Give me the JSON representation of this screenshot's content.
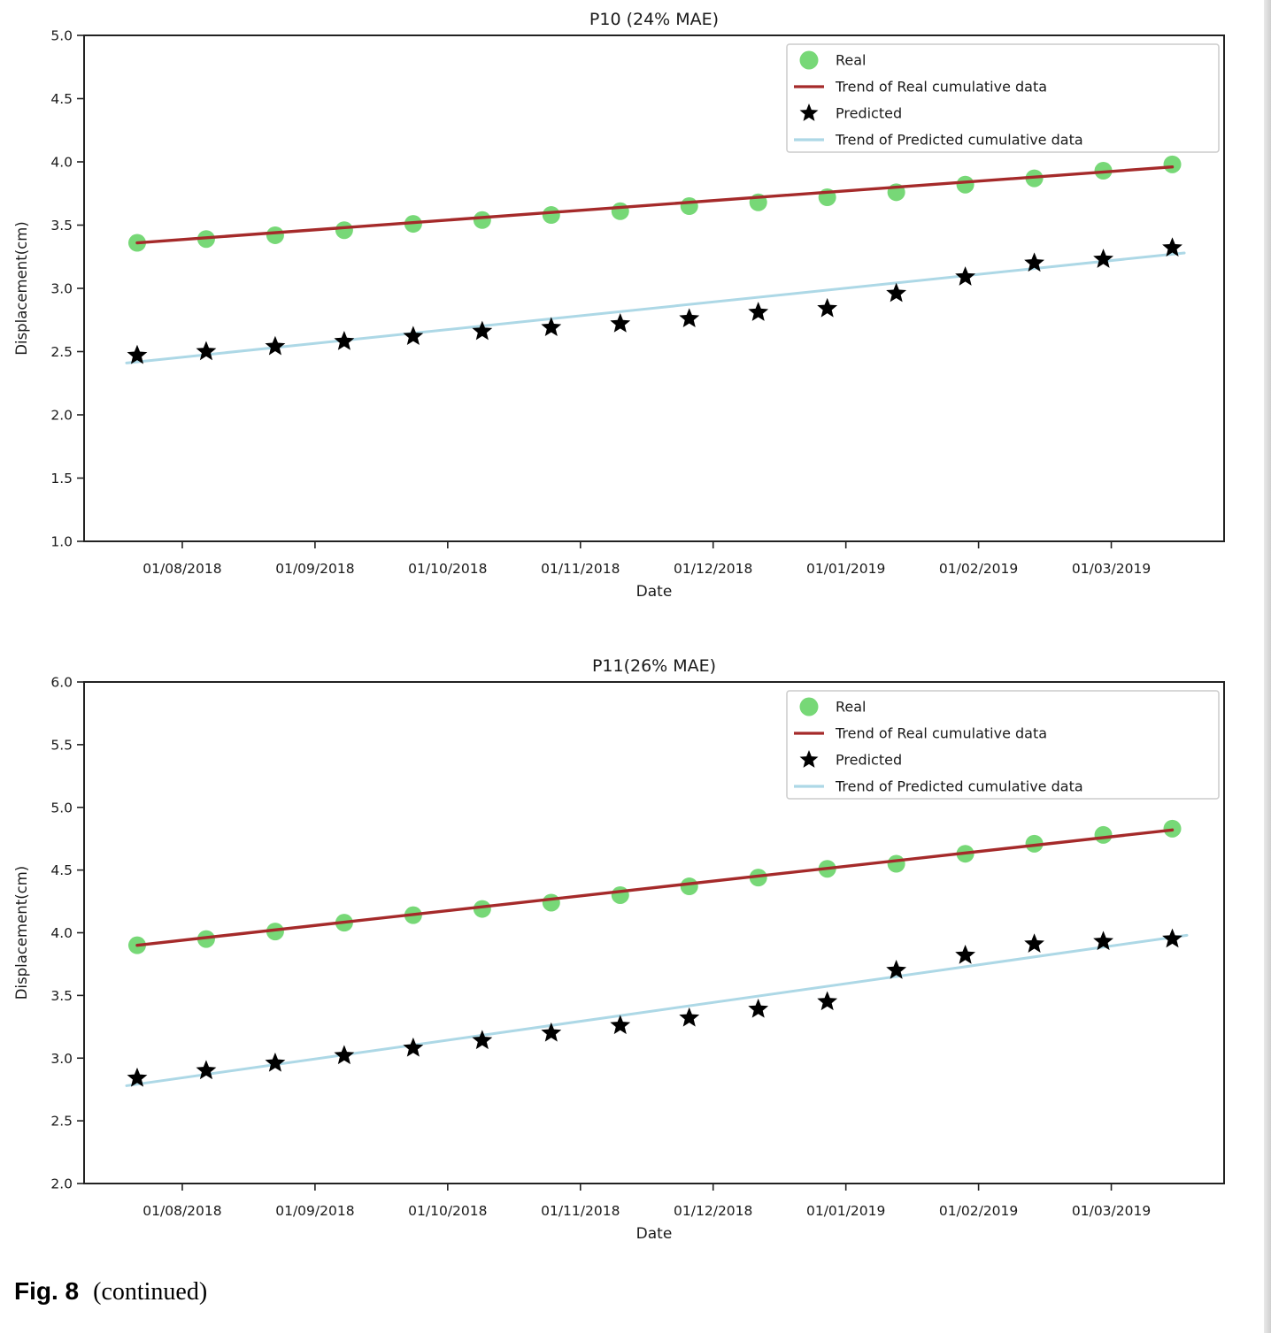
{
  "caption": {
    "fig_label": "Fig. 8",
    "fig_note": "(continued)"
  },
  "colors": {
    "real": "#77d877",
    "real_trend": "#a52a2a",
    "predicted": "#000000",
    "predicted_trend": "#add8e6",
    "frame": "#222222",
    "text": "#1a1a1a",
    "legend_border": "#cccccc"
  },
  "chart_data": [
    {
      "type": "scatter",
      "title": "P10 (24% MAE)",
      "xlabel": "Date",
      "ylabel": "Displacement(cm)",
      "ylim": [
        1.0,
        5.0
      ],
      "ytick_labels": [
        "5.0",
        "4.5",
        "4.0",
        "3.5",
        "3.0",
        "2.5",
        "2.0",
        "1.5",
        "1.0"
      ],
      "xlim_months": [
        -0.74,
        7.85
      ],
      "xtick_months": [
        0,
        1,
        2,
        3,
        4,
        5,
        6,
        7
      ],
      "xtick_labels": [
        "01/08/2018",
        "01/09/2018",
        "01/10/2018",
        "01/11/2018",
        "01/12/2018",
        "01/01/2019",
        "01/02/2019",
        "01/03/2019"
      ],
      "x_months": [
        -0.34,
        0.18,
        0.7,
        1.22,
        1.74,
        2.26,
        2.78,
        3.3,
        3.82,
        4.34,
        4.86,
        5.38,
        5.9,
        6.42,
        6.94,
        7.46
      ],
      "legend_position": "upper right",
      "grid": false,
      "series": [
        {
          "name": "Real",
          "kind": "scatter",
          "marker": "circle",
          "color_key": "real",
          "values": [
            3.36,
            3.39,
            3.42,
            3.46,
            3.51,
            3.54,
            3.58,
            3.61,
            3.65,
            3.68,
            3.72,
            3.76,
            3.82,
            3.87,
            3.93,
            3.98
          ]
        },
        {
          "name": "Trend of Real cumulative data",
          "kind": "trend",
          "color_key": "real_trend",
          "trend_x": [
            -0.34,
            7.46
          ],
          "trend_endpoints": [
            3.36,
            3.96
          ]
        },
        {
          "name": "Predicted",
          "kind": "scatter",
          "marker": "star",
          "color_key": "predicted",
          "values": [
            2.47,
            2.5,
            2.54,
            2.58,
            2.62,
            2.66,
            2.69,
            2.72,
            2.76,
            2.81,
            2.84,
            2.96,
            3.09,
            3.2,
            3.23,
            3.32
          ]
        },
        {
          "name": "Trend of Predicted cumulative data",
          "kind": "trend",
          "color_key": "predicted_trend",
          "trend_x": [
            -0.42,
            7.55
          ],
          "trend_endpoints": [
            2.41,
            3.28
          ]
        }
      ]
    },
    {
      "type": "scatter",
      "title": "P11(26% MAE)",
      "xlabel": "Date",
      "ylabel": "Displacement(cm)",
      "ylim": [
        2.0,
        6.0
      ],
      "ytick_labels": [
        "6.0",
        "5.5",
        "5.0",
        "4.5",
        "4.0",
        "3.5",
        "3.0",
        "2.5",
        "2.0"
      ],
      "xlim_months": [
        -0.74,
        7.85
      ],
      "xtick_months": [
        0,
        1,
        2,
        3,
        4,
        5,
        6,
        7
      ],
      "xtick_labels": [
        "01/08/2018",
        "01/09/2018",
        "01/10/2018",
        "01/11/2018",
        "01/12/2018",
        "01/01/2019",
        "01/02/2019",
        "01/03/2019"
      ],
      "x_months": [
        -0.34,
        0.18,
        0.7,
        1.22,
        1.74,
        2.26,
        2.78,
        3.3,
        3.82,
        4.34,
        4.86,
        5.38,
        5.9,
        6.42,
        6.94,
        7.46
      ],
      "legend_position": "upper right",
      "grid": false,
      "series": [
        {
          "name": "Real",
          "kind": "scatter",
          "marker": "circle",
          "color_key": "real",
          "values": [
            3.9,
            3.95,
            4.01,
            4.08,
            4.14,
            4.19,
            4.24,
            4.3,
            4.37,
            4.44,
            4.51,
            4.55,
            4.63,
            4.71,
            4.78,
            4.83
          ]
        },
        {
          "name": "Trend of Real cumulative data",
          "kind": "trend",
          "color_key": "real_trend",
          "trend_x": [
            -0.34,
            7.46
          ],
          "trend_endpoints": [
            3.9,
            4.82
          ]
        },
        {
          "name": "Predicted",
          "kind": "scatter",
          "marker": "star",
          "color_key": "predicted",
          "values": [
            2.84,
            2.9,
            2.96,
            3.02,
            3.08,
            3.14,
            3.2,
            3.26,
            3.32,
            3.39,
            3.45,
            3.7,
            3.82,
            3.91,
            3.93,
            3.95
          ]
        },
        {
          "name": "Trend of Predicted cumulative data",
          "kind": "trend",
          "color_key": "predicted_trend",
          "trend_x": [
            -0.42,
            7.57
          ],
          "trend_endpoints": [
            2.78,
            3.98
          ]
        }
      ]
    }
  ]
}
